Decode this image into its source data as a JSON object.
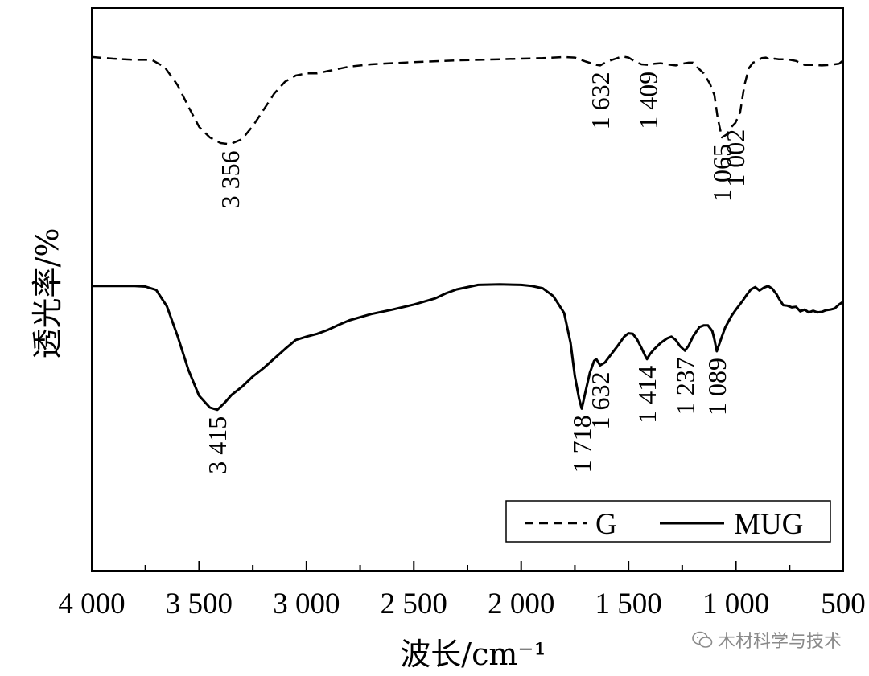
{
  "chart_data": {
    "type": "line",
    "xlabel": "波长/cm⁻¹",
    "ylabel": "透光率/%",
    "xlim": [
      4000,
      500
    ],
    "x_reversed": true,
    "x_ticks": [
      4000,
      3500,
      3000,
      2500,
      2000,
      1500,
      1000,
      500
    ],
    "x_tick_labels": [
      "4 000",
      "3 500",
      "3 000",
      "2 500",
      "2 000",
      "1 500",
      "1 000",
      "500"
    ],
    "ylim": [
      0,
      100
    ],
    "y_ticks_shown": false,
    "grid": false,
    "legend": {
      "position": "bottom-right",
      "entries": [
        {
          "name": "G",
          "style": "dashed"
        },
        {
          "name": "MUG",
          "style": "solid"
        }
      ]
    },
    "series": [
      {
        "name": "G",
        "style": "dashed",
        "color": "#000000",
        "points": [
          [
            4000,
            91.3
          ],
          [
            3900,
            91.0
          ],
          [
            3800,
            90.8
          ],
          [
            3720,
            90.8
          ],
          [
            3660,
            89.5
          ],
          [
            3600,
            86.3
          ],
          [
            3550,
            82.5
          ],
          [
            3500,
            78.9
          ],
          [
            3450,
            77.0
          ],
          [
            3400,
            76.0
          ],
          [
            3356,
            75.8
          ],
          [
            3300,
            76.7
          ],
          [
            3250,
            79.0
          ],
          [
            3200,
            81.9
          ],
          [
            3150,
            84.8
          ],
          [
            3100,
            86.9
          ],
          [
            3050,
            88.0
          ],
          [
            3000,
            88.4
          ],
          [
            2950,
            88.4
          ],
          [
            2900,
            88.8
          ],
          [
            2800,
            89.6
          ],
          [
            2700,
            90.0
          ],
          [
            2500,
            90.4
          ],
          [
            2300,
            90.7
          ],
          [
            2100,
            90.9
          ],
          [
            1900,
            91.1
          ],
          [
            1800,
            91.3
          ],
          [
            1750,
            91.2
          ],
          [
            1700,
            90.5
          ],
          [
            1650,
            89.9
          ],
          [
            1632,
            89.8
          ],
          [
            1600,
            90.5
          ],
          [
            1560,
            91.0
          ],
          [
            1530,
            91.4
          ],
          [
            1500,
            91.2
          ],
          [
            1470,
            90.5
          ],
          [
            1440,
            90.0
          ],
          [
            1409,
            89.9
          ],
          [
            1380,
            90.1
          ],
          [
            1350,
            90.2
          ],
          [
            1320,
            90.0
          ],
          [
            1280,
            89.8
          ],
          [
            1250,
            90.1
          ],
          [
            1220,
            90.3
          ],
          [
            1200,
            90.3
          ],
          [
            1180,
            89.5
          ],
          [
            1150,
            88.4
          ],
          [
            1120,
            86.5
          ],
          [
            1100,
            84.5
          ],
          [
            1085,
            80.5
          ],
          [
            1065,
            77.0
          ],
          [
            1040,
            77.6
          ],
          [
            1020,
            78.9
          ],
          [
            1002,
            79.6
          ],
          [
            980,
            81.5
          ],
          [
            960,
            86.3
          ],
          [
            940,
            89.3
          ],
          [
            920,
            90.3
          ],
          [
            900,
            90.6
          ],
          [
            880,
            91.1
          ],
          [
            860,
            91.2
          ],
          [
            840,
            90.8
          ],
          [
            820,
            91.0
          ],
          [
            800,
            90.9
          ],
          [
            760,
            90.9
          ],
          [
            720,
            90.6
          ],
          [
            680,
            89.9
          ],
          [
            640,
            89.9
          ],
          [
            600,
            89.8
          ],
          [
            560,
            89.9
          ],
          [
            520,
            90.1
          ],
          [
            500,
            90.7
          ]
        ]
      },
      {
        "name": "MUG",
        "style": "solid",
        "color": "#000000",
        "points": [
          [
            4000,
            50.6
          ],
          [
            3900,
            50.6
          ],
          [
            3800,
            50.6
          ],
          [
            3750,
            50.5
          ],
          [
            3700,
            49.9
          ],
          [
            3650,
            47.0
          ],
          [
            3600,
            41.7
          ],
          [
            3550,
            35.7
          ],
          [
            3500,
            31.1
          ],
          [
            3450,
            29.0
          ],
          [
            3415,
            28.6
          ],
          [
            3380,
            29.9
          ],
          [
            3350,
            31.2
          ],
          [
            3300,
            32.7
          ],
          [
            3250,
            34.5
          ],
          [
            3200,
            36.0
          ],
          [
            3150,
            37.7
          ],
          [
            3100,
            39.4
          ],
          [
            3050,
            41.0
          ],
          [
            3000,
            41.6
          ],
          [
            2950,
            42.1
          ],
          [
            2900,
            42.8
          ],
          [
            2850,
            43.7
          ],
          [
            2800,
            44.5
          ],
          [
            2700,
            45.6
          ],
          [
            2600,
            46.4
          ],
          [
            2500,
            47.3
          ],
          [
            2400,
            48.4
          ],
          [
            2350,
            49.3
          ],
          [
            2300,
            50.0
          ],
          [
            2200,
            50.8
          ],
          [
            2100,
            50.9
          ],
          [
            2000,
            50.8
          ],
          [
            1950,
            50.6
          ],
          [
            1900,
            50.2
          ],
          [
            1850,
            48.8
          ],
          [
            1800,
            45.8
          ],
          [
            1770,
            40.5
          ],
          [
            1750,
            34.6
          ],
          [
            1730,
            30.5
          ],
          [
            1718,
            28.8
          ],
          [
            1700,
            31.9
          ],
          [
            1680,
            35.2
          ],
          [
            1660,
            37.3
          ],
          [
            1650,
            37.6
          ],
          [
            1632,
            36.5
          ],
          [
            1610,
            37.0
          ],
          [
            1580,
            38.5
          ],
          [
            1550,
            40.0
          ],
          [
            1520,
            41.6
          ],
          [
            1500,
            42.2
          ],
          [
            1480,
            42.1
          ],
          [
            1460,
            41.1
          ],
          [
            1440,
            39.6
          ],
          [
            1420,
            38.0
          ],
          [
            1414,
            37.6
          ],
          [
            1400,
            38.5
          ],
          [
            1380,
            39.4
          ],
          [
            1350,
            40.5
          ],
          [
            1320,
            41.3
          ],
          [
            1300,
            41.6
          ],
          [
            1280,
            41.0
          ],
          [
            1260,
            39.9
          ],
          [
            1237,
            39.1
          ],
          [
            1220,
            40.0
          ],
          [
            1200,
            41.6
          ],
          [
            1170,
            43.3
          ],
          [
            1150,
            43.6
          ],
          [
            1130,
            43.6
          ],
          [
            1110,
            42.6
          ],
          [
            1100,
            41.1
          ],
          [
            1089,
            39.0
          ],
          [
            1070,
            41.1
          ],
          [
            1050,
            43.2
          ],
          [
            1020,
            45.3
          ],
          [
            1000,
            46.4
          ],
          [
            970,
            47.9
          ],
          [
            950,
            49.0
          ],
          [
            930,
            50.0
          ],
          [
            910,
            50.4
          ],
          [
            890,
            49.8
          ],
          [
            870,
            50.3
          ],
          [
            850,
            50.6
          ],
          [
            830,
            50.1
          ],
          [
            810,
            49.1
          ],
          [
            800,
            48.4
          ],
          [
            780,
            47.2
          ],
          [
            760,
            47.1
          ],
          [
            740,
            46.8
          ],
          [
            720,
            46.9
          ],
          [
            700,
            46.1
          ],
          [
            680,
            46.4
          ],
          [
            660,
            45.9
          ],
          [
            640,
            46.2
          ],
          [
            620,
            45.9
          ],
          [
            600,
            46.0
          ],
          [
            580,
            46.3
          ],
          [
            560,
            46.4
          ],
          [
            540,
            46.6
          ],
          [
            520,
            47.3
          ],
          [
            500,
            47.8
          ]
        ]
      }
    ],
    "annotations": [
      {
        "series": "G",
        "x": 3356,
        "text": "3 356"
      },
      {
        "series": "G",
        "x": 1632,
        "text": "1 632"
      },
      {
        "series": "G",
        "x": 1409,
        "text": "1 409"
      },
      {
        "series": "G",
        "x": 1065,
        "text": "1 065"
      },
      {
        "series": "G",
        "x": 1002,
        "text": "1 002"
      },
      {
        "series": "MUG",
        "x": 3415,
        "text": "3 415"
      },
      {
        "series": "MUG",
        "x": 1718,
        "text": "1 718"
      },
      {
        "series": "MUG",
        "x": 1632,
        "text": "1 632"
      },
      {
        "series": "MUG",
        "x": 1414,
        "text": "1 414"
      },
      {
        "series": "MUG",
        "x": 1237,
        "text": "1 237"
      },
      {
        "series": "MUG",
        "x": 1089,
        "text": "1 089"
      }
    ]
  },
  "watermark": {
    "text": "木材科学与技术",
    "icon": "wechat-icon"
  }
}
